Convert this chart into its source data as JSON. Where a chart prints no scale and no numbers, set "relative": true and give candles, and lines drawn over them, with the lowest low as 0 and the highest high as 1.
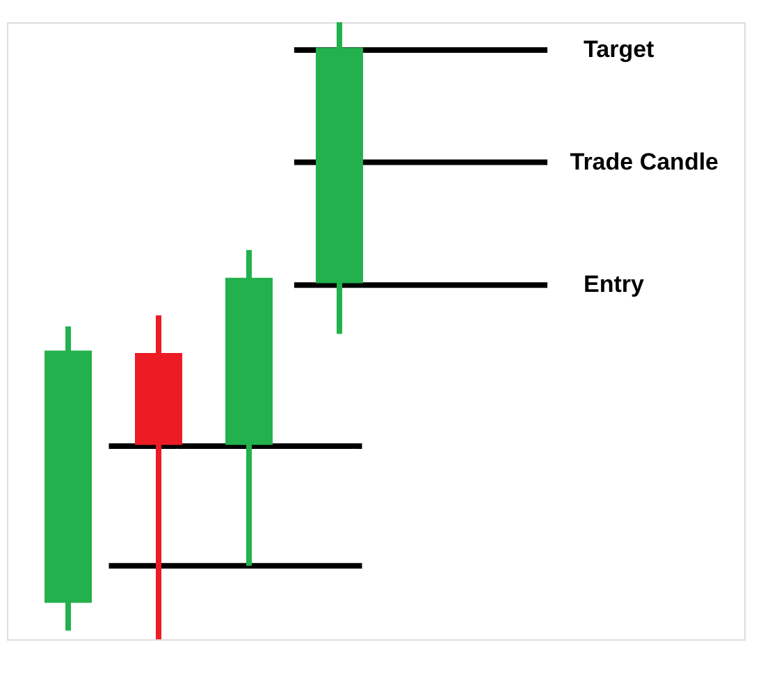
{
  "chart_data": {
    "type": "candlestick",
    "relative": true,
    "categories": [
      null,
      null,
      null,
      null
    ],
    "ohlc": [
      [
        0.059,
        0.507,
        0.014,
        0.468
      ],
      [
        0.464,
        0.525,
        0.0,
        0.315
      ],
      [
        0.315,
        0.631,
        0.119,
        0.586
      ],
      [
        0.577,
        1.0,
        0.495,
        0.959
      ]
    ],
    "colors": [
      "#22b14c",
      "#ed1c24",
      "#22b14c",
      "#22b14c"
    ],
    "ref_lines": [
      {
        "axis": "y",
        "value": 0.955,
        "label": "Target",
        "color": "#000000"
      },
      {
        "axis": "y",
        "value": 0.773,
        "label": "Trade Candle",
        "color": "#000000"
      },
      {
        "axis": "y",
        "value": 0.574,
        "label": "Entry",
        "color": "#000000"
      },
      {
        "axis": "y",
        "value": 0.313,
        "label": null,
        "color": "#000000"
      },
      {
        "axis": "y",
        "value": 0.119,
        "label": null,
        "color": "#000000"
      }
    ]
  }
}
